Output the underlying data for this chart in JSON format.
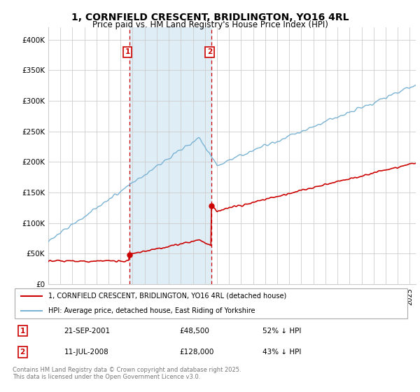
{
  "title": "1, CORNFIELD CRESCENT, BRIDLINGTON, YO16 4RL",
  "subtitle": "Price paid vs. HM Land Registry's House Price Index (HPI)",
  "background_color": "#ffffff",
  "grid_color": "#cccccc",
  "hpi_line_color": "#7ab3d4",
  "price_line_color": "#cc0000",
  "shaded_color": "#daeaf5",
  "dashed_color": "#cc0000",
  "transaction1_date": "21-SEP-2001",
  "transaction1_price": 48500,
  "transaction1_pct": "52% ↓ HPI",
  "transaction2_date": "11-JUL-2008",
  "transaction2_price": 128000,
  "transaction2_pct": "43% ↓ HPI",
  "legend_label1": "1, CORNFIELD CRESCENT, BRIDLINGTON, YO16 4RL (detached house)",
  "legend_label2": "HPI: Average price, detached house, East Riding of Yorkshire",
  "footer": "Contains HM Land Registry data © Crown copyright and database right 2025.\nThis data is licensed under the Open Government Licence v3.0.",
  "xmin": 1995.0,
  "xmax": 2025.5,
  "ymin": 0,
  "ymax": 420000,
  "yticks": [
    0,
    50000,
    100000,
    150000,
    200000,
    250000,
    300000,
    350000,
    400000
  ],
  "ytick_labels": [
    "£0",
    "£50K",
    "£100K",
    "£150K",
    "£200K",
    "£250K",
    "£300K",
    "£350K",
    "£400K"
  ],
  "t1_x": 2001.72,
  "t2_x": 2008.53,
  "t1_price": 48500,
  "t2_price": 128000
}
